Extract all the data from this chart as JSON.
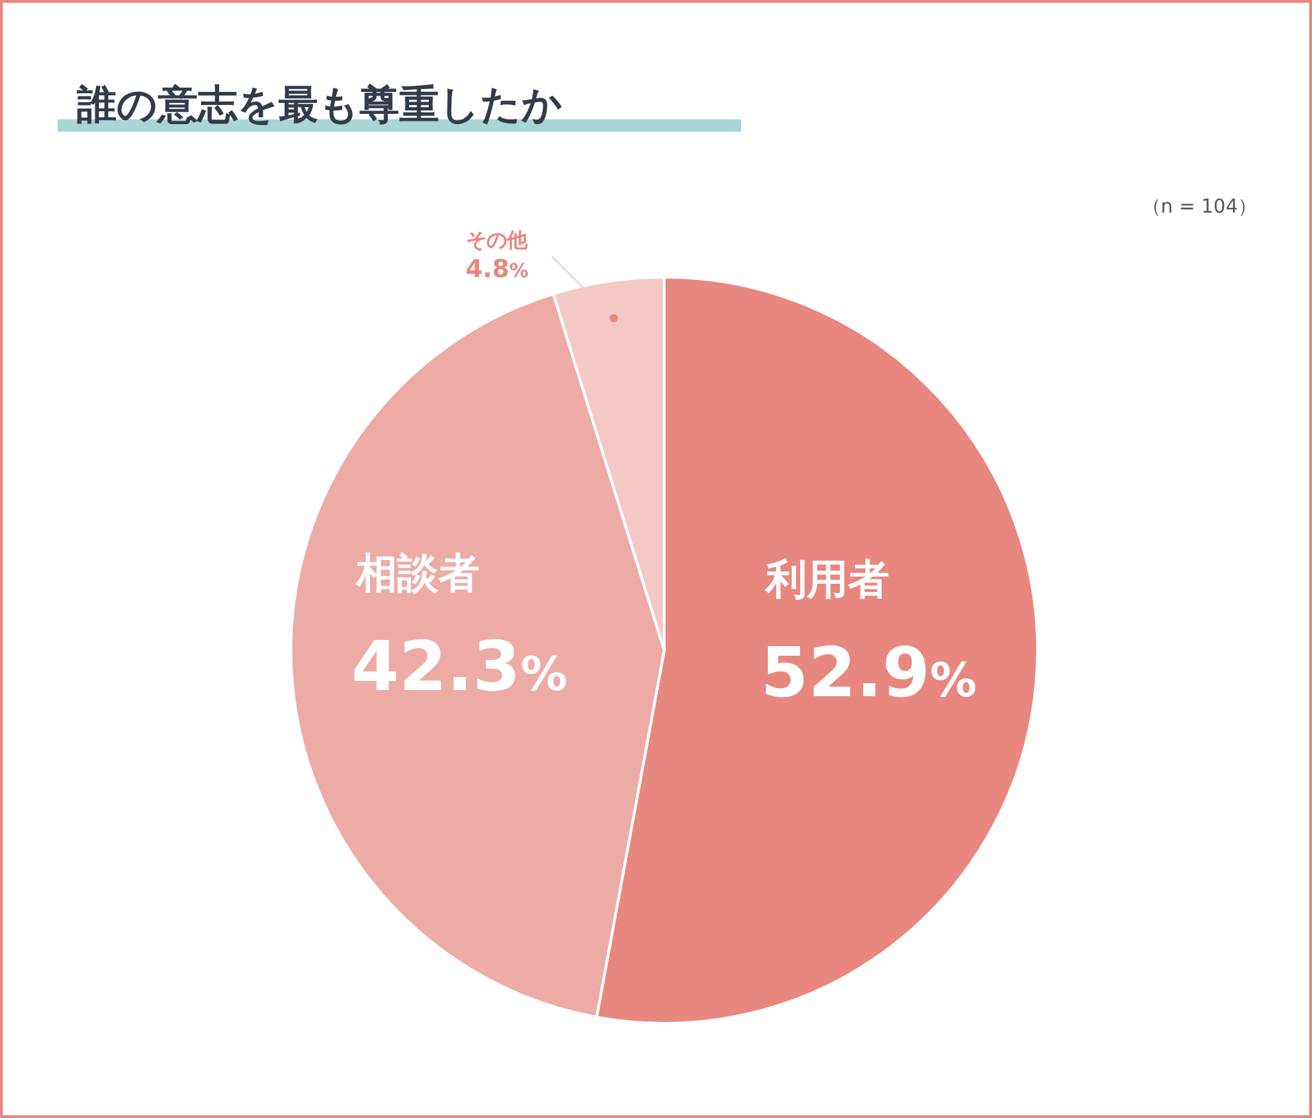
{
  "chart_data": {
    "type": "pie",
    "title": "誰の意志を最も尊重したか",
    "annotations": [
      "（n = 104）"
    ],
    "categories": [
      "利用者",
      "相談者",
      "その他"
    ],
    "values": [
      52.9,
      42.3,
      4.8
    ],
    "value_labels": [
      "52.9%",
      "42.3%",
      "4.8%"
    ],
    "colors": [
      "#e8877f",
      "#edaba5",
      "#f4c8c4"
    ],
    "legend": false
  }
}
